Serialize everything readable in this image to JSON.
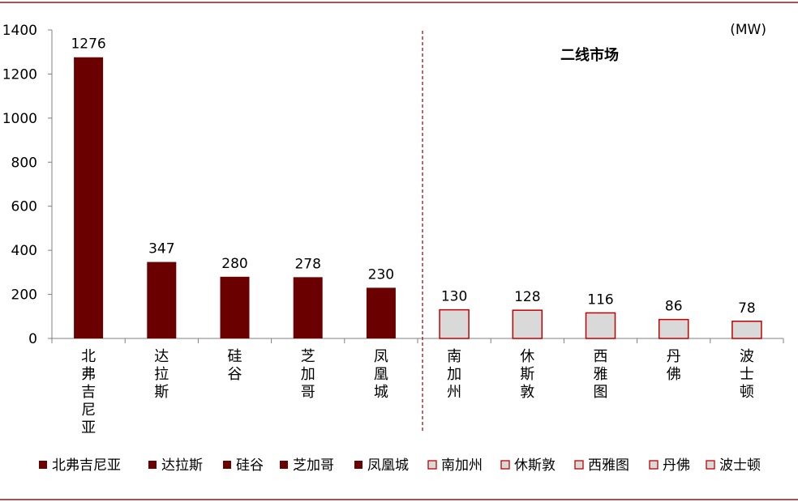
{
  "chart_data": {
    "type": "bar",
    "unit_label": "(MW)",
    "annotation": "二线市场",
    "categories": [
      "北弗吉尼亚",
      "达拉斯",
      "硅谷",
      "芝加哥",
      "凤凰城",
      "南加州",
      "休斯敦",
      "西雅图",
      "丹佛",
      "波士顿"
    ],
    "values": [
      1276,
      347,
      280,
      278,
      230,
      130,
      128,
      116,
      86,
      78
    ],
    "tier": [
      "primary",
      "primary",
      "primary",
      "primary",
      "primary",
      "secondary",
      "secondary",
      "secondary",
      "secondary",
      "secondary"
    ],
    "ylim": [
      0,
      1400
    ],
    "yticks": [
      0,
      200,
      400,
      600,
      800,
      1000,
      1200,
      1400
    ],
    "grid": false,
    "legend_position": "bottom",
    "colors": {
      "primary_fill": "#6B0000",
      "primary_stroke": "#6B0000",
      "secondary_fill": "#D9D9D9",
      "secondary_stroke": "#C00000",
      "divider": "#8B1A1A",
      "frame_line": "#8B1A1A",
      "axis": "#808080"
    }
  }
}
